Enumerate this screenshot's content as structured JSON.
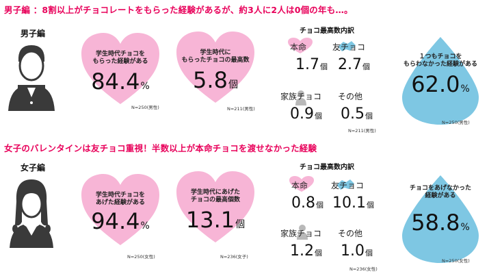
{
  "colors": {
    "accent": "#e8005a",
    "heart": "#f7b5d6",
    "drop": "#7ec7e3",
    "blob_pink": "#f7b5d6",
    "blob_blue": "#7ec7e3",
    "blob_gray": "#b9b9b9"
  },
  "male": {
    "headline": "男子編 ：8割以上がチョコレートをもらった経験があるが、約3人に2人は0個の年も…。",
    "section_label": "男子編",
    "avatar_icon": "male-student-icon",
    "heart1": {
      "label": "学生時代チョコを\nもらった経験がある",
      "value": "84.4",
      "unit": "%",
      "note": "N=250(男性)"
    },
    "heart2": {
      "label": "学生時代に\nもらったチョコの最高数",
      "value": "5.8",
      "unit": "個",
      "note": "N=211(男性)"
    },
    "breakdown": {
      "title": "チョコ最高数内訳",
      "items": [
        {
          "tag": "本命",
          "value": "1.7",
          "unit": "個"
        },
        {
          "tag": "友チョコ",
          "value": "2.7",
          "unit": "個"
        },
        {
          "tag": "家族チョコ",
          "value": "0.9",
          "unit": "個"
        },
        {
          "tag": "その他",
          "value": "0.5",
          "unit": "個"
        }
      ],
      "note": "N=211(男性)"
    },
    "drop": {
      "label": "１つもチョコを\nもらわなかった経験がある",
      "value": "62.0",
      "unit": "%",
      "note": "N=250(男性)"
    }
  },
  "female": {
    "headline": "女子のバレンタインは友チョコ重視！半数以上が本命チョコを渡せなかった経験",
    "section_label": "女子編",
    "avatar_icon": "female-student-icon",
    "heart1": {
      "label": "学生時代チョコを\nあげた経験がある",
      "value": "94.4",
      "unit": "%",
      "note": "N=250(女性)"
    },
    "heart2": {
      "label": "学生時代にあげた\nチョコの最高個数",
      "value": "13.1",
      "unit": "個",
      "note": "N=236(女子)"
    },
    "breakdown": {
      "title": "チョコ最高数内訳",
      "items": [
        {
          "tag": "本命",
          "value": "0.8",
          "unit": "個"
        },
        {
          "tag": "友チョコ",
          "value": "10.1",
          "unit": "個"
        },
        {
          "tag": "家族チョコ",
          "value": "1.2",
          "unit": "個"
        },
        {
          "tag": "その他",
          "value": "1.0",
          "unit": "個"
        }
      ],
      "note": "N=236(女性)"
    },
    "drop": {
      "label": "チョコをあげなかった\n経験がある",
      "value": "58.8",
      "unit": "%",
      "note": "N=250(女性)"
    }
  }
}
